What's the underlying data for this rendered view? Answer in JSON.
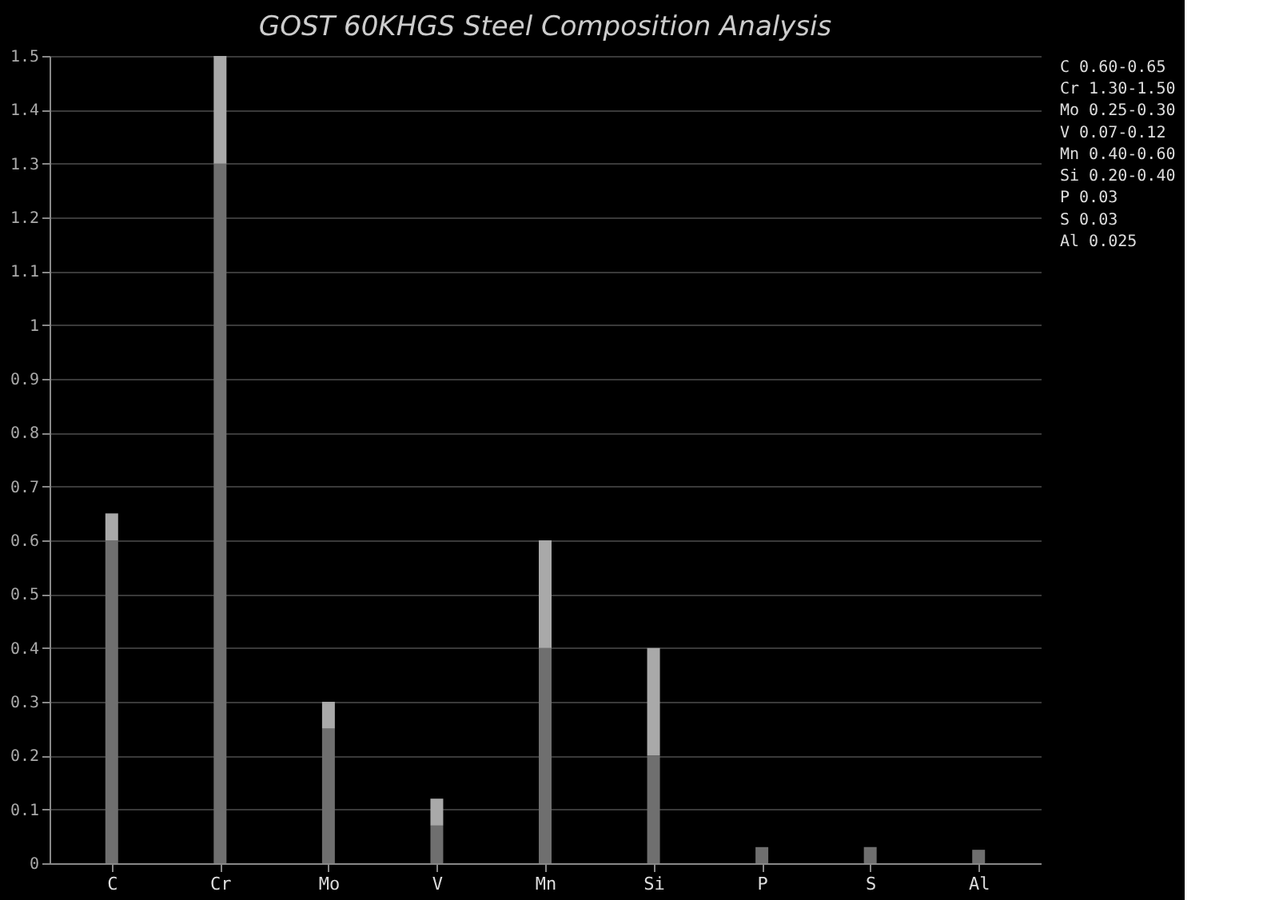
{
  "chart_data": {
    "type": "bar",
    "title": "GOST 60KHGS Steel Composition Analysis",
    "stacked": true,
    "categories": [
      "C",
      "Cr",
      "Mo",
      "V",
      "Mn",
      "Si",
      "P",
      "S",
      "Al"
    ],
    "series": [
      {
        "color": "#6f6f6f",
        "values": [
          0.6,
          1.3,
          0.25,
          0.07,
          0.4,
          0.2,
          0.03,
          0.03,
          0.025
        ]
      },
      {
        "color": "#a9a9a9",
        "values": [
          0.05,
          0.2,
          0.05,
          0.05,
          0.2,
          0.2,
          null,
          null,
          null
        ]
      }
    ],
    "ylim": [
      0,
      1.5
    ],
    "yticks": [
      0,
      0.1,
      0.2,
      0.3,
      0.4,
      0.5,
      0.6,
      0.7,
      0.8,
      0.9,
      1,
      1.1,
      1.2,
      1.3,
      1.4,
      1.5
    ],
    "grid": "y",
    "annotations": [
      "C  0.60-0.65",
      "Cr 1.30-1.50",
      "Mo 0.25-0.30",
      "V  0.07-0.12",
      "Mn 0.40-0.60",
      "Si 0.20-0.40",
      "P  0.03",
      "S  0.03",
      "Al 0.025"
    ]
  }
}
